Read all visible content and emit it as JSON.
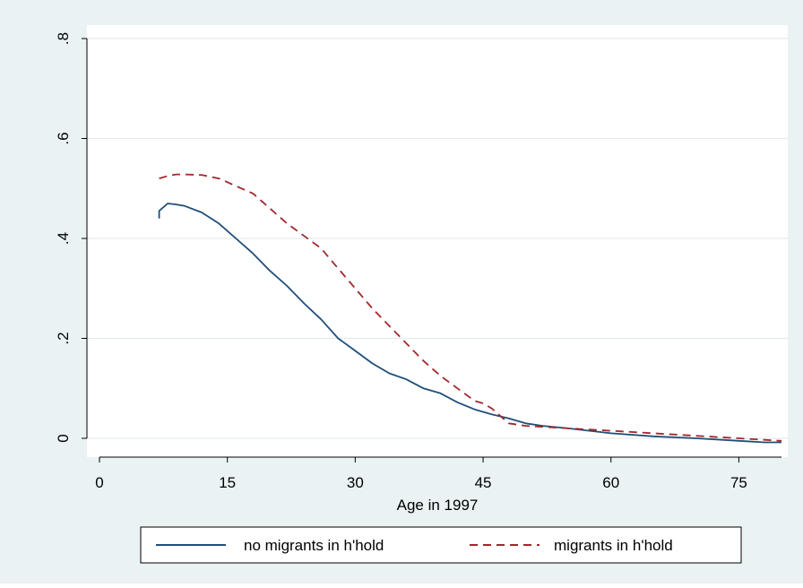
{
  "chart_data": {
    "type": "line",
    "title": "",
    "xlabel": "Age in 1997",
    "ylabel": "",
    "xlim": [
      0,
      80
    ],
    "ylim": [
      0,
      0.8
    ],
    "x_ticks": [
      0,
      15,
      30,
      45,
      60,
      75
    ],
    "x_tick_labels": [
      "0",
      "15",
      "30",
      "45",
      "60",
      "75"
    ],
    "y_ticks": [
      0,
      0.2,
      0.4,
      0.6,
      0.8
    ],
    "y_tick_labels": [
      "0",
      ".2",
      ".4",
      ".6",
      ".8"
    ],
    "grid": true,
    "legend_position": "bottom",
    "series": [
      {
        "name": "no migrants in h'hold",
        "color": "#1f4e79",
        "style": "solid",
        "x": [
          7,
          7,
          8,
          9,
          10,
          12,
          14,
          16,
          18,
          20,
          22,
          24,
          26,
          28,
          30,
          32,
          34,
          36,
          38,
          40,
          42,
          44,
          46,
          48,
          50,
          52,
          55,
          60,
          65,
          70,
          75,
          78,
          80
        ],
        "y": [
          0.44,
          0.455,
          0.47,
          0.468,
          0.465,
          0.452,
          0.43,
          0.4,
          0.37,
          0.335,
          0.305,
          0.27,
          0.238,
          0.2,
          0.175,
          0.15,
          0.13,
          0.118,
          0.1,
          0.09,
          0.072,
          0.058,
          0.048,
          0.04,
          0.03,
          0.025,
          0.02,
          0.01,
          0.004,
          0.0,
          -0.005,
          -0.008,
          -0.008
        ]
      },
      {
        "name": "migrants in h'hold",
        "color": "#a0282d",
        "style": "dashed",
        "x": [
          7,
          8,
          9,
          10,
          12,
          14,
          16,
          18,
          20,
          22,
          24,
          26,
          28,
          30,
          32,
          34,
          36,
          38,
          40,
          42,
          44,
          45,
          46,
          47,
          48,
          50,
          55,
          60,
          65,
          70,
          75,
          78,
          80
        ],
        "y": [
          0.52,
          0.525,
          0.528,
          0.528,
          0.527,
          0.52,
          0.505,
          0.49,
          0.46,
          0.43,
          0.405,
          0.38,
          0.34,
          0.3,
          0.26,
          0.225,
          0.19,
          0.155,
          0.125,
          0.1,
          0.075,
          0.07,
          0.06,
          0.045,
          0.03,
          0.025,
          0.02,
          0.015,
          0.01,
          0.005,
          0.0,
          -0.003,
          -0.005
        ]
      }
    ]
  }
}
